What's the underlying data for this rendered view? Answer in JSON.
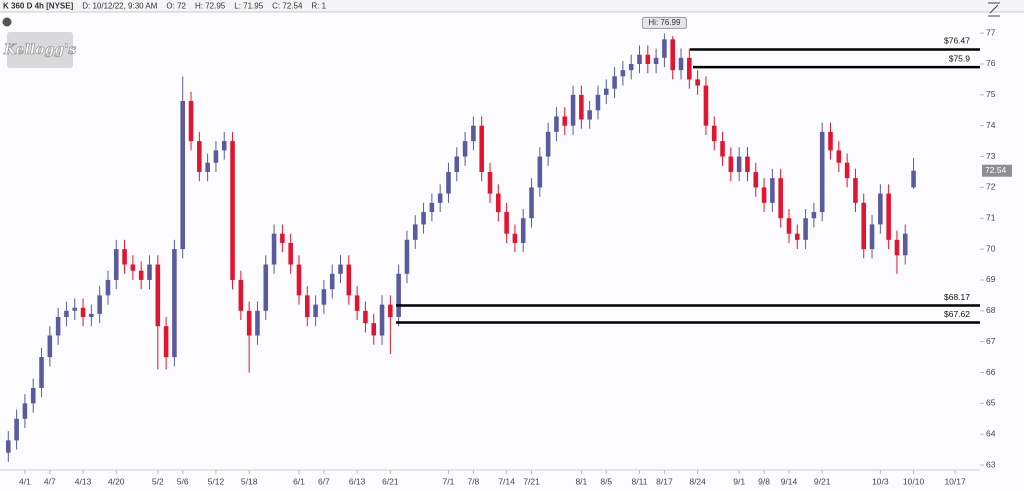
{
  "chart_data": {
    "type": "candlestick",
    "header": [
      "K 360 D 4h [NYSE]",
      "D: 10/12/22, 9:30 AM",
      "O: 72",
      "H: 72.95",
      "L: 71.95",
      "C: 72.54",
      "R: 1"
    ],
    "logo": "Kellogg's",
    "up_color": "#5a5a9e",
    "down_color": "#e3142f",
    "ylim": [
      62.84,
      77.62
    ],
    "yticks": [
      63,
      64,
      65,
      66,
      67,
      68,
      69,
      70,
      71,
      72,
      73,
      74,
      75,
      76,
      77
    ],
    "xlim": [
      -1,
      117
    ],
    "xticks": [
      {
        "value": 2,
        "label": "4/1"
      },
      {
        "value": 5,
        "label": "4/7"
      },
      {
        "value": 9,
        "label": "4/13"
      },
      {
        "value": 13,
        "label": "4/20"
      },
      {
        "value": 18,
        "label": "5/2"
      },
      {
        "value": 21,
        "label": "5/6"
      },
      {
        "value": 25,
        "label": "5/12"
      },
      {
        "value": 29,
        "label": "5/18"
      },
      {
        "value": 35,
        "label": "6/1"
      },
      {
        "value": 38,
        "label": "6/7"
      },
      {
        "value": 42,
        "label": "6/13"
      },
      {
        "value": 46,
        "label": "6/21"
      },
      {
        "value": 53,
        "label": "7/1"
      },
      {
        "value": 56,
        "label": "7/8"
      },
      {
        "value": 60,
        "label": "7/14"
      },
      {
        "value": 63,
        "label": "7/21"
      },
      {
        "value": 69,
        "label": "8/1"
      },
      {
        "value": 72,
        "label": "8/5"
      },
      {
        "value": 76,
        "label": "8/11"
      },
      {
        "value": 79,
        "label": "8/17"
      },
      {
        "value": 83,
        "label": "8/24"
      },
      {
        "value": 88,
        "label": "9/1"
      },
      {
        "value": 91,
        "label": "9/8"
      },
      {
        "value": 94,
        "label": "9/14"
      },
      {
        "value": 98,
        "label": "9/21"
      },
      {
        "value": 105,
        "label": "10/3"
      },
      {
        "value": 109,
        "label": "10/10"
      },
      {
        "value": 114,
        "label": "10/17"
      }
    ],
    "open": [
      63.4,
      63.8,
      64.5,
      65,
      65.5,
      66.5,
      67.2,
      67.8,
      68,
      68.1,
      67.8,
      67.9,
      68.5,
      69,
      70,
      69.5,
      69.3,
      69,
      69.5,
      67.5,
      66.5,
      70,
      74.8,
      73.5,
      72.5,
      72.8,
      73.2,
      73.5,
      69,
      68,
      67.2,
      68,
      69.5,
      70.5,
      70.2,
      69.5,
      68.5,
      67.8,
      68.2,
      68.7,
      69.2,
      69.5,
      68.5,
      68,
      67.6,
      67.2,
      68.2,
      67.8,
      69.2,
      70.3,
      70.8,
      71.2,
      71.5,
      71.8,
      72.5,
      73,
      73.5,
      74,
      72.5,
      71.8,
      71.2,
      70.5,
      70.2,
      71,
      72,
      73,
      73.8,
      74.3,
      74,
      75,
      74.2,
      74.5,
      75,
      75.2,
      75.6,
      75.8,
      76,
      76.3,
      76,
      76.2,
      76.8,
      75.8,
      76.2,
      75.5,
      75.3,
      74,
      73.5,
      73,
      72.5,
      73,
      72.5,
      72,
      71.5,
      72.3,
      71,
      70.5,
      70.3,
      71,
      71.2,
      73.8,
      73.2,
      72.8,
      72.3,
      71.5,
      70,
      70.8,
      71.8,
      70.3,
      69.8,
      72
    ],
    "high": [
      64.1,
      64.8,
      65.3,
      65.8,
      66.8,
      67.5,
      68.1,
      68.3,
      68.4,
      68.4,
      68.2,
      68.8,
      69.3,
      70.3,
      70.3,
      69.8,
      69.6,
      69.8,
      69.8,
      67.8,
      70.3,
      75.6,
      75.1,
      73.8,
      73.1,
      73.5,
      73.8,
      73.8,
      69.3,
      68.3,
      68.3,
      69.8,
      70.8,
      70.8,
      70.5,
      69.8,
      68.8,
      68.5,
      69,
      69.5,
      69.8,
      69.8,
      68.8,
      68.3,
      67.9,
      68.5,
      68.5,
      69.5,
      70.6,
      71.1,
      71.5,
      71.8,
      72.1,
      72.8,
      73.3,
      73.8,
      74.3,
      74.3,
      72.8,
      72.1,
      71.5,
      70.8,
      71.3,
      72.3,
      73.3,
      74.1,
      74.6,
      74.6,
      75.3,
      75.3,
      74.8,
      75.3,
      75.5,
      75.9,
      76.1,
      76.3,
      76.6,
      76.6,
      76.5,
      76.99,
      76.9,
      76.5,
      76.5,
      75.8,
      75.6,
      74.3,
      73.8,
      73.3,
      73.3,
      73.3,
      72.8,
      72.3,
      72.6,
      72.6,
      71.3,
      70.8,
      71.3,
      71.5,
      74.1,
      74.1,
      73.5,
      73.1,
      72.6,
      71.8,
      71.1,
      72.1,
      72.1,
      70.6,
      70.8,
      72.95
    ],
    "low": [
      63.1,
      63.5,
      64.2,
      64.7,
      65.2,
      66.2,
      66.9,
      67.5,
      67.7,
      67.5,
      67.5,
      67.6,
      68.2,
      68.7,
      69.2,
      69,
      68.7,
      68.7,
      66.1,
      66.1,
      66.2,
      69.7,
      73.2,
      72.2,
      72.2,
      72.5,
      72.9,
      68.7,
      67.7,
      66,
      66.9,
      67.7,
      69.2,
      69.9,
      69.2,
      68.2,
      67.5,
      67.5,
      67.9,
      68.4,
      68.9,
      68.2,
      67.7,
      67.3,
      66.9,
      66.9,
      66.6,
      67.5,
      68.9,
      70,
      70.5,
      70.9,
      71.2,
      71.5,
      72.2,
      72.7,
      73.2,
      72.2,
      71.5,
      70.9,
      70.2,
      69.9,
      69.9,
      70.7,
      71.7,
      72.7,
      73.5,
      73.7,
      73.7,
      73.9,
      73.9,
      74.2,
      74.7,
      74.9,
      75.3,
      75.5,
      75.7,
      75.7,
      75.7,
      75.9,
      75.5,
      75.5,
      75.2,
      75,
      73.7,
      73.2,
      72.7,
      72.2,
      72.2,
      72.2,
      71.7,
      71.2,
      71.2,
      70.7,
      70.2,
      70,
      70,
      70.7,
      70.9,
      72.9,
      72.5,
      72,
      71.2,
      69.7,
      69.7,
      70.5,
      70,
      69.2,
      69.5,
      71.95
    ],
    "close": [
      63.8,
      64.5,
      65,
      65.5,
      66.5,
      67.2,
      67.8,
      68,
      68.1,
      67.8,
      67.9,
      68.5,
      69,
      70,
      69.5,
      69.3,
      69,
      69.5,
      67.5,
      66.5,
      70,
      74.8,
      73.5,
      72.5,
      72.8,
      73.2,
      73.5,
      69,
      68,
      67.2,
      68,
      69.5,
      70.5,
      70.2,
      69.5,
      68.5,
      67.8,
      68.2,
      68.7,
      69.2,
      69.5,
      68.5,
      68,
      67.6,
      67.2,
      68.2,
      67.8,
      69.2,
      70.3,
      70.8,
      71.2,
      71.5,
      71.8,
      72.5,
      73,
      73.5,
      74,
      72.5,
      71.8,
      71.2,
      70.5,
      70.2,
      71,
      72,
      73,
      73.8,
      74.3,
      74,
      75,
      74.2,
      74.5,
      75,
      75.2,
      75.6,
      75.8,
      76,
      76.3,
      76,
      76.2,
      76.8,
      75.8,
      76.2,
      75.5,
      75.3,
      74,
      73.5,
      73,
      72.5,
      73,
      72.5,
      72,
      71.5,
      72.3,
      71,
      70.5,
      70.3,
      71,
      71.2,
      73.8,
      73.2,
      72.8,
      72.3,
      71.5,
      70,
      70.8,
      71.8,
      70.3,
      69.8,
      70.5,
      72.54
    ],
    "high_annotation": {
      "value": 76.99,
      "label": "Hi: 76.99"
    },
    "last_price": 72.54,
    "levels": [
      {
        "value": 76.47,
        "label": "$76.47"
      },
      {
        "value": 75.9,
        "label": "$75.9"
      },
      {
        "value": 68.17,
        "label": "$68.17"
      },
      {
        "value": 67.62,
        "label": "$67.62"
      }
    ]
  }
}
